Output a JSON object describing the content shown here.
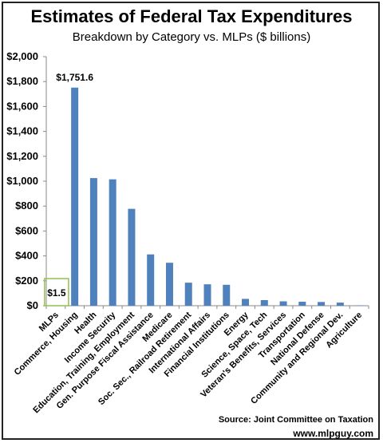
{
  "chart_data": {
    "type": "bar",
    "title": "Estimates of Federal Tax Expenditures",
    "subtitle": "Breakdown by Category vs. MLPs ($ billions)",
    "categories": [
      "MLPs",
      "Commerce, Housing",
      "Health",
      "Income Security",
      "Education, Training, Employment",
      "Gen. Purpose Fiscal Assistance",
      "Medicare",
      "Soc. Sec., Railroad Retirement",
      "International Affairs",
      "Financial Institutions",
      "Energy",
      "Science, Space, Tech",
      "Veteran's Benefits, Services",
      "Transportation",
      "National Defense",
      "Community and Regional Dev.",
      "Agriculture"
    ],
    "values": [
      1.5,
      1751.6,
      1025,
      1015,
      778,
      412,
      345,
      185,
      172,
      168,
      55,
      45,
      35,
      32,
      30,
      25,
      3
    ],
    "data_labels": [
      {
        "category": "MLPs",
        "text": "$1.5"
      },
      {
        "category": "Commerce, Housing",
        "text": "$1,751.6"
      }
    ],
    "yticks": [
      "$0",
      "$200",
      "$400",
      "$600",
      "$800",
      "$1,000",
      "$1,200",
      "$1,400",
      "$1,600",
      "$1,800",
      "$2,000"
    ],
    "ylim": [
      0,
      2000
    ],
    "xlabel": "",
    "ylabel": "",
    "grid": false,
    "legend": "none",
    "bar_color": "#4f81bd",
    "highlight_color": "#92c050"
  },
  "footer": {
    "source": "Source: Joint Committee on Taxation",
    "site": "www.mlpguy.com"
  }
}
